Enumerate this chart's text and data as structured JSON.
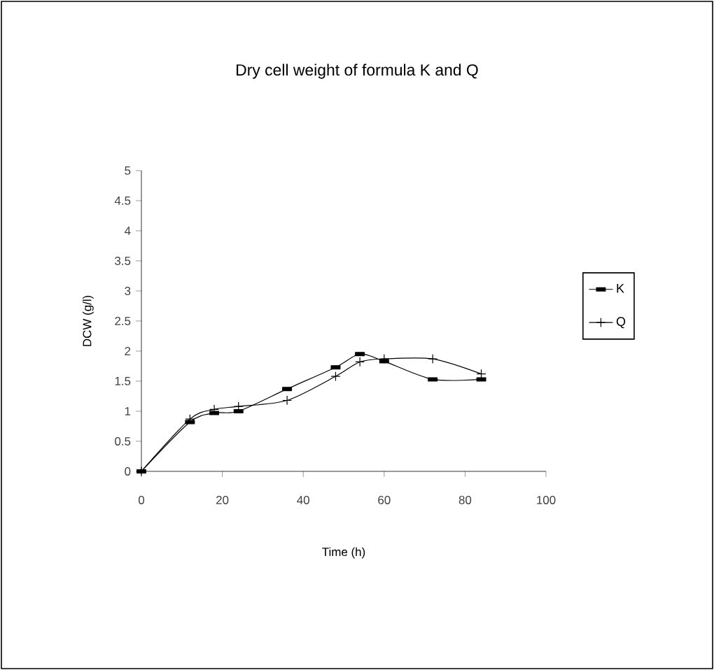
{
  "chart_data": {
    "type": "line",
    "title": "Dry cell weight of formula K and Q",
    "xlabel": "Time (h)",
    "ylabel": "DCW (g/l)",
    "xlim": [
      0,
      100
    ],
    "xticks": [
      0,
      20,
      40,
      60,
      80,
      100
    ],
    "ylim": [
      0,
      5
    ],
    "yticks": [
      0,
      0.5,
      1,
      1.5,
      2,
      2.5,
      3,
      3.5,
      4,
      4.5,
      5
    ],
    "grid": false,
    "legend": "right",
    "line_style": "solid",
    "series": [
      {
        "name": "K",
        "color": "#000000",
        "marker": "square",
        "x": [
          0,
          12,
          18,
          24,
          36,
          48,
          54,
          60,
          72,
          84
        ],
        "values": [
          0,
          0.82,
          0.97,
          1.0,
          1.37,
          1.73,
          1.95,
          1.83,
          1.53,
          1.53
        ]
      },
      {
        "name": "Q",
        "color": "#000000",
        "marker": "cross",
        "x": [
          0,
          12,
          18,
          24,
          36,
          48,
          54,
          60,
          72,
          84
        ],
        "values": [
          0,
          0.87,
          1.03,
          1.08,
          1.18,
          1.58,
          1.82,
          1.87,
          1.87,
          1.62
        ]
      }
    ]
  }
}
